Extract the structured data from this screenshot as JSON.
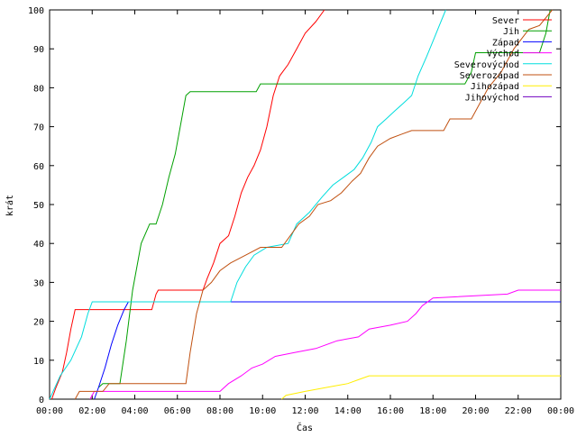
{
  "chart_data": {
    "type": "line",
    "xlabel": "Čas",
    "ylabel": "krát",
    "xlim": [
      0,
      24
    ],
    "ylim": [
      0,
      100
    ],
    "xticks": [
      {
        "v": 0,
        "label": "00:00"
      },
      {
        "v": 2,
        "label": "02:00"
      },
      {
        "v": 4,
        "label": "04:00"
      },
      {
        "v": 6,
        "label": "06:00"
      },
      {
        "v": 8,
        "label": "08:00"
      },
      {
        "v": 10,
        "label": "10:00"
      },
      {
        "v": 12,
        "label": "12:00"
      },
      {
        "v": 14,
        "label": "14:00"
      },
      {
        "v": 16,
        "label": "16:00"
      },
      {
        "v": 18,
        "label": "18:00"
      },
      {
        "v": 20,
        "label": "20:00"
      },
      {
        "v": 22,
        "label": "22:00"
      },
      {
        "v": 24,
        "label": "00:00"
      }
    ],
    "yticks": [
      0,
      10,
      20,
      30,
      40,
      50,
      60,
      70,
      80,
      90,
      100
    ],
    "grid": false,
    "legend_position": "top-right",
    "series": [
      {
        "name": "Sever",
        "color": "#ff0000",
        "points": [
          [
            0.1,
            0
          ],
          [
            0.3,
            3
          ],
          [
            0.6,
            7
          ],
          [
            0.8,
            12
          ],
          [
            1.0,
            18
          ],
          [
            1.2,
            23
          ],
          [
            4.8,
            23
          ],
          [
            5.0,
            27
          ],
          [
            5.1,
            28
          ],
          [
            7.2,
            28
          ],
          [
            7.4,
            31
          ],
          [
            7.7,
            35
          ],
          [
            8.0,
            40
          ],
          [
            8.4,
            42
          ],
          [
            8.7,
            47
          ],
          [
            9.0,
            53
          ],
          [
            9.3,
            57
          ],
          [
            9.6,
            60
          ],
          [
            9.9,
            64
          ],
          [
            10.2,
            70
          ],
          [
            10.5,
            78
          ],
          [
            10.8,
            83
          ],
          [
            11.2,
            86
          ],
          [
            11.6,
            90
          ],
          [
            12.0,
            94
          ],
          [
            12.5,
            97
          ],
          [
            12.9,
            100
          ]
        ]
      },
      {
        "name": "Jih",
        "color": "#00a000",
        "points": [
          [
            2.3,
            3
          ],
          [
            2.5,
            4
          ],
          [
            3.3,
            4
          ],
          [
            3.6,
            15
          ],
          [
            3.9,
            28
          ],
          [
            4.3,
            40
          ],
          [
            4.7,
            45
          ],
          [
            5.0,
            45
          ],
          [
            5.3,
            50
          ],
          [
            5.6,
            57
          ],
          [
            5.9,
            63
          ],
          [
            6.2,
            72
          ],
          [
            6.4,
            78
          ],
          [
            6.6,
            79
          ],
          [
            9.7,
            79
          ],
          [
            9.9,
            81
          ],
          [
            19.5,
            81
          ],
          [
            19.8,
            84
          ],
          [
            20.0,
            89
          ],
          [
            21.5,
            89
          ],
          [
            23.0,
            89
          ],
          [
            23.3,
            94
          ],
          [
            23.5,
            100
          ]
        ]
      },
      {
        "name": "Západ",
        "color": "#0000ff",
        "points": [
          [
            2.1,
            0
          ],
          [
            2.3,
            3
          ],
          [
            2.6,
            8
          ],
          [
            2.9,
            14
          ],
          [
            3.2,
            19
          ],
          [
            3.5,
            23
          ],
          [
            3.7,
            25
          ],
          [
            24.0,
            25
          ]
        ]
      },
      {
        "name": "Východ",
        "color": "#ff00ff",
        "points": [
          [
            1.9,
            0
          ],
          [
            2.1,
            2
          ],
          [
            8.0,
            2
          ],
          [
            8.4,
            4
          ],
          [
            9.0,
            6
          ],
          [
            9.5,
            8
          ],
          [
            10.0,
            9
          ],
          [
            10.6,
            11
          ],
          [
            11.5,
            12
          ],
          [
            12.5,
            13
          ],
          [
            13.5,
            15
          ],
          [
            14.5,
            16
          ],
          [
            15.0,
            18
          ],
          [
            16.0,
            19
          ],
          [
            16.8,
            20
          ],
          [
            17.2,
            22
          ],
          [
            17.5,
            24
          ],
          [
            18.0,
            26
          ],
          [
            21.5,
            27
          ],
          [
            22.0,
            28
          ],
          [
            24.0,
            28
          ]
        ]
      },
      {
        "name": "Severovýchod",
        "color": "#00dddd",
        "points": [
          [
            0,
            0
          ],
          [
            0.5,
            6
          ],
          [
            1.0,
            10
          ],
          [
            1.5,
            16
          ],
          [
            1.8,
            22
          ],
          [
            2.0,
            25
          ],
          [
            8.5,
            25
          ],
          [
            8.8,
            30
          ],
          [
            9.2,
            34
          ],
          [
            9.6,
            37
          ],
          [
            10.2,
            39
          ],
          [
            11.2,
            40
          ],
          [
            11.6,
            45
          ],
          [
            12.2,
            48
          ],
          [
            12.8,
            52
          ],
          [
            13.3,
            55
          ],
          [
            13.8,
            57
          ],
          [
            14.3,
            59
          ],
          [
            14.7,
            62
          ],
          [
            15.1,
            66
          ],
          [
            15.4,
            70
          ],
          [
            15.8,
            72
          ],
          [
            16.2,
            74
          ],
          [
            16.6,
            76
          ],
          [
            17.0,
            78
          ],
          [
            17.3,
            83
          ],
          [
            17.7,
            88
          ],
          [
            18.0,
            92
          ],
          [
            18.3,
            96
          ],
          [
            18.6,
            100
          ]
        ]
      },
      {
        "name": "Severozápad",
        "color": "#c05010",
        "points": [
          [
            1.2,
            0
          ],
          [
            1.4,
            2
          ],
          [
            2.5,
            2
          ],
          [
            2.8,
            4
          ],
          [
            6.4,
            4
          ],
          [
            6.6,
            12
          ],
          [
            6.9,
            22
          ],
          [
            7.2,
            28
          ],
          [
            7.6,
            30
          ],
          [
            8.0,
            33
          ],
          [
            8.5,
            35
          ],
          [
            9.2,
            37
          ],
          [
            9.9,
            39
          ],
          [
            10.9,
            39
          ],
          [
            11.3,
            42
          ],
          [
            11.7,
            45
          ],
          [
            12.2,
            47
          ],
          [
            12.6,
            50
          ],
          [
            13.2,
            51
          ],
          [
            13.7,
            53
          ],
          [
            14.2,
            56
          ],
          [
            14.6,
            58
          ],
          [
            15.0,
            62
          ],
          [
            15.4,
            65
          ],
          [
            16.0,
            67
          ],
          [
            16.5,
            68
          ],
          [
            17.0,
            69
          ],
          [
            18.5,
            69
          ],
          [
            18.8,
            72
          ],
          [
            19.8,
            72
          ],
          [
            20.2,
            76
          ],
          [
            20.6,
            80
          ],
          [
            21.2,
            84
          ],
          [
            21.8,
            90
          ],
          [
            22.5,
            95
          ],
          [
            23.0,
            96
          ],
          [
            23.6,
            100
          ]
        ]
      },
      {
        "name": "Jihozápad",
        "color": "#ffee00",
        "points": [
          [
            10.9,
            0
          ],
          [
            11.1,
            1
          ],
          [
            12.0,
            2
          ],
          [
            13.0,
            3
          ],
          [
            14.0,
            4
          ],
          [
            14.5,
            5
          ],
          [
            15.0,
            6
          ],
          [
            24.0,
            6
          ]
        ]
      },
      {
        "name": "Jihovýchod",
        "color": "#7000c0",
        "points": []
      }
    ]
  }
}
